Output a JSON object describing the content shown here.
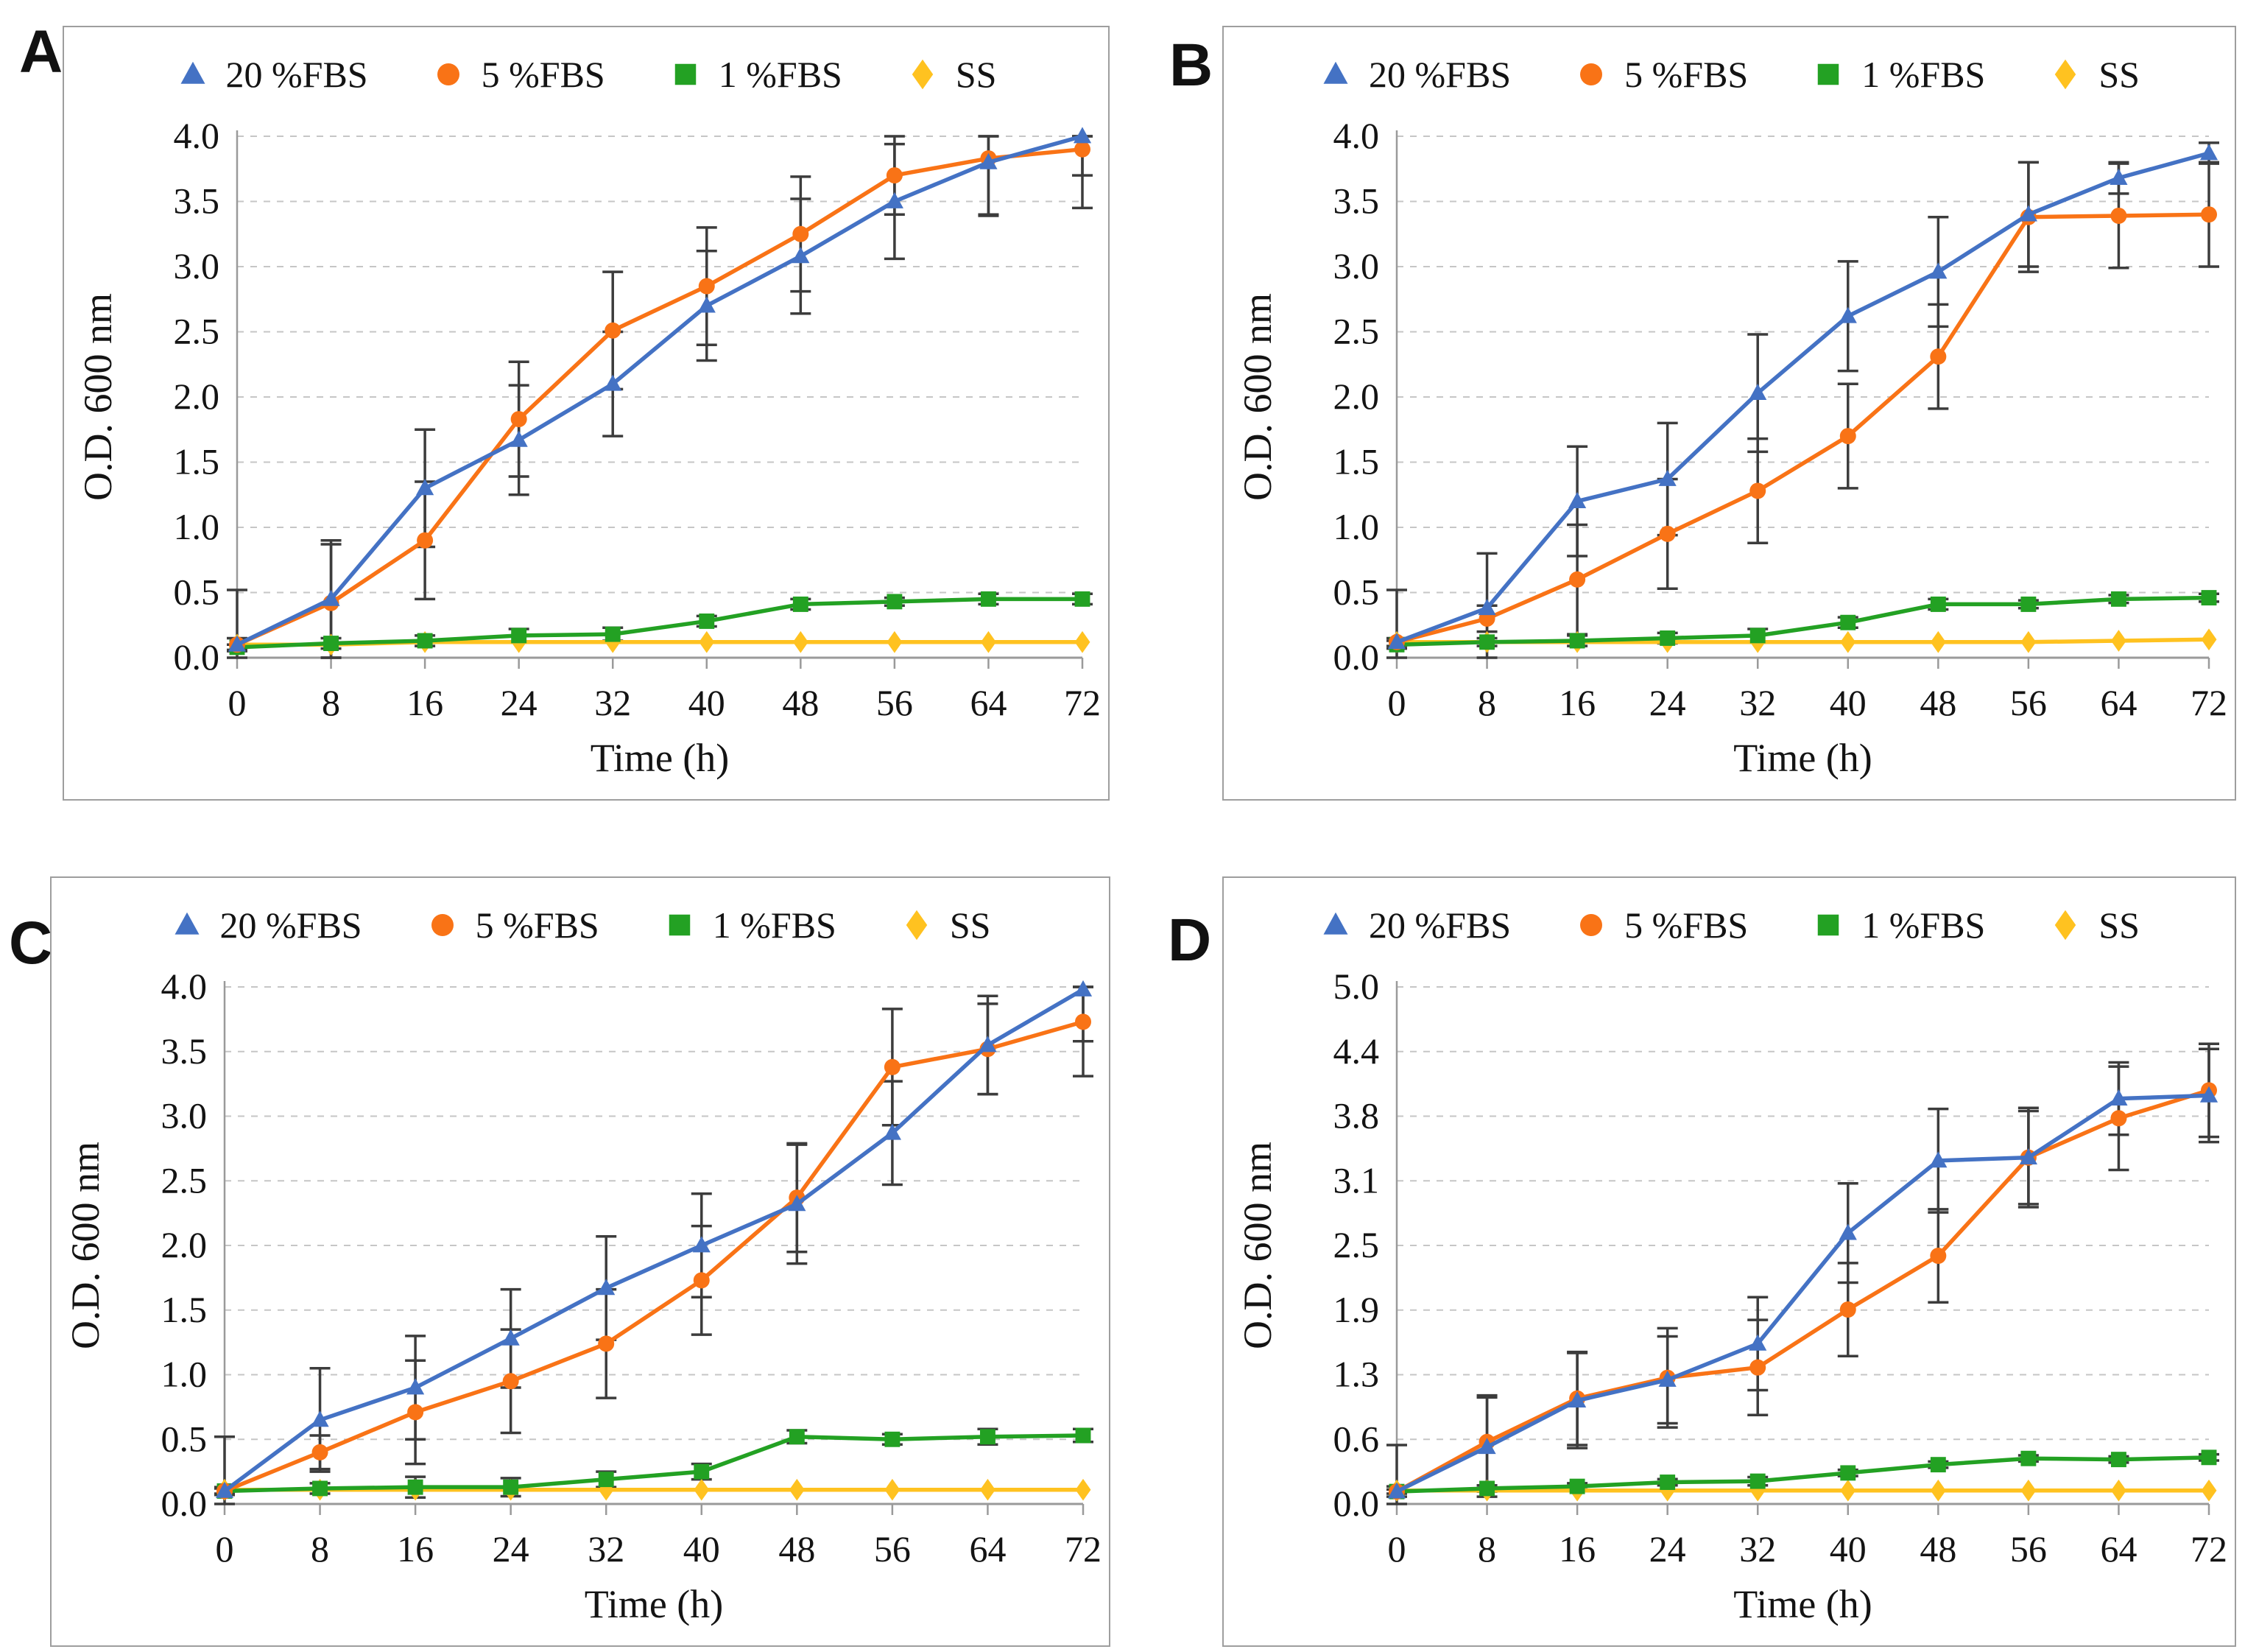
{
  "figure": {
    "error_bar_color": "#3c3c3c",
    "axis_color": "#9a9a9a",
    "grid_color": "#c6c6c6",
    "border_color": "#9e9e9e",
    "background": "#ffffff"
  },
  "chart_data": [
    {
      "type": "line",
      "label": "A",
      "title": "",
      "xlabel": "Time (h)",
      "ylabel": "O.D. 600 nm",
      "x": [
        0,
        8,
        16,
        24,
        32,
        40,
        48,
        56,
        64,
        72
      ],
      "xtick_labels": [
        "0",
        "8",
        "16",
        "24",
        "32",
        "40",
        "48",
        "56",
        "64",
        "72"
      ],
      "ylim": [
        0,
        4.0
      ],
      "ytick_values": [
        0,
        0.5,
        1.0,
        1.5,
        2.0,
        2.5,
        3.0,
        3.5,
        4.0
      ],
      "ytick_labels": [
        "0.0",
        "0.5",
        "1.0",
        "1.5",
        "2.0",
        "2.5",
        "3.0",
        "3.5",
        "4.0"
      ],
      "grid": true,
      "legend_position": "top",
      "series": [
        {
          "name": "20 %FBS",
          "color": "#4472C4",
          "marker": "triangle",
          "values": [
            0.1,
            0.45,
            1.3,
            1.67,
            2.1,
            2.7,
            3.08,
            3.5,
            3.8,
            4.0
          ],
          "err": [
            0.42,
            0.45,
            0.45,
            0.42,
            0.4,
            0.42,
            0.44,
            0.44,
            0.4,
            0.3
          ]
        },
        {
          "name": "5 %FBS",
          "color": "#F97316",
          "marker": "circle",
          "values": [
            0.1,
            0.42,
            0.9,
            1.83,
            2.51,
            2.85,
            3.25,
            3.7,
            3.83,
            3.9
          ],
          "err": [
            0.05,
            0.45,
            0.45,
            0.44,
            0.45,
            0.45,
            0.44,
            0.3,
            0.44,
            0.45
          ]
        },
        {
          "name": "1 %FBS",
          "color": "#23A123",
          "marker": "square",
          "values": [
            0.08,
            0.11,
            0.13,
            0.17,
            0.18,
            0.28,
            0.41,
            0.43,
            0.45,
            0.45
          ],
          "err": [
            0.02,
            0.04,
            0.04,
            0.05,
            0.05,
            0.04,
            0.04,
            0.03,
            0.04,
            0.04
          ]
        },
        {
          "name": "SS",
          "color": "#FFC220",
          "marker": "diamond",
          "values": [
            0.1,
            0.1,
            0.12,
            0.12,
            0.12,
            0.12,
            0.12,
            0.12,
            0.12,
            0.12
          ],
          "err": [
            0.01,
            0.01,
            0.01,
            0.01,
            0.01,
            0.01,
            0.01,
            0.01,
            0.01,
            0.01
          ]
        }
      ]
    },
    {
      "type": "line",
      "label": "B",
      "title": "",
      "xlabel": "Time (h)",
      "ylabel": "O.D. 600 nm",
      "x": [
        0,
        8,
        16,
        24,
        32,
        40,
        48,
        56,
        64,
        72
      ],
      "xtick_labels": [
        "0",
        "8",
        "16",
        "24",
        "32",
        "40",
        "48",
        "56",
        "64",
        "72"
      ],
      "ylim": [
        0,
        4.0
      ],
      "ytick_values": [
        0,
        0.5,
        1.0,
        1.5,
        2.0,
        2.5,
        3.0,
        3.5,
        4.0
      ],
      "ytick_labels": [
        "0.0",
        "0.5",
        "1.0",
        "1.5",
        "2.0",
        "2.5",
        "3.0",
        "3.5",
        "4.0"
      ],
      "grid": true,
      "legend_position": "top",
      "series": [
        {
          "name": "20 %FBS",
          "color": "#4472C4",
          "marker": "triangle",
          "values": [
            0.12,
            0.38,
            1.2,
            1.37,
            2.03,
            2.62,
            2.96,
            3.4,
            3.68,
            3.87
          ],
          "err": [
            0.4,
            0.42,
            0.42,
            0.43,
            0.45,
            0.42,
            0.42,
            0.4,
            0.12,
            0.08
          ]
        },
        {
          "name": "5 %FBS",
          "color": "#F97316",
          "marker": "circle",
          "values": [
            0.12,
            0.3,
            0.6,
            0.95,
            1.28,
            1.7,
            2.31,
            3.38,
            3.39,
            3.4
          ],
          "err": [
            0.03,
            0.1,
            0.42,
            0.42,
            0.4,
            0.4,
            0.4,
            0.42,
            0.4,
            0.4
          ]
        },
        {
          "name": "1 %FBS",
          "color": "#23A123",
          "marker": "square",
          "values": [
            0.1,
            0.12,
            0.13,
            0.15,
            0.17,
            0.27,
            0.41,
            0.41,
            0.45,
            0.46
          ],
          "err": [
            0.03,
            0.03,
            0.04,
            0.04,
            0.05,
            0.04,
            0.04,
            0.03,
            0.03,
            0.03
          ]
        },
        {
          "name": "SS",
          "color": "#FFC220",
          "marker": "diamond",
          "values": [
            0.12,
            0.12,
            0.12,
            0.12,
            0.12,
            0.12,
            0.12,
            0.12,
            0.13,
            0.14
          ],
          "err": [
            0.01,
            0.01,
            0.01,
            0.01,
            0.01,
            0.01,
            0.01,
            0.01,
            0.01,
            0.01
          ]
        }
      ]
    },
    {
      "type": "line",
      "label": "C",
      "title": "",
      "xlabel": "Time (h)",
      "ylabel": "O.D. 600 nm",
      "x": [
        0,
        8,
        16,
        24,
        32,
        40,
        48,
        56,
        64,
        72
      ],
      "xtick_labels": [
        "0",
        "8",
        "16",
        "24",
        "32",
        "40",
        "48",
        "56",
        "64",
        "72"
      ],
      "ylim": [
        0,
        4.0
      ],
      "ytick_values": [
        0,
        0.5,
        1.0,
        1.5,
        2.0,
        2.5,
        3.0,
        3.5,
        4.0
      ],
      "ytick_labels": [
        "0.0",
        "0.5",
        "1.0",
        "1.5",
        "2.0",
        "2.5",
        "3.0",
        "3.5",
        "4.0"
      ],
      "grid": true,
      "legend_position": "top",
      "series": [
        {
          "name": "20 %FBS",
          "color": "#4472C4",
          "marker": "triangle",
          "values": [
            0.1,
            0.65,
            0.9,
            1.28,
            1.67,
            2.0,
            2.32,
            2.87,
            3.55,
            3.98
          ],
          "err": [
            0.42,
            0.4,
            0.4,
            0.38,
            0.4,
            0.4,
            0.46,
            0.4,
            0.38,
            0.4
          ]
        },
        {
          "name": "5 %FBS",
          "color": "#F97316",
          "marker": "circle",
          "values": [
            0.1,
            0.4,
            0.71,
            0.95,
            1.24,
            1.73,
            2.37,
            3.38,
            3.52,
            3.73
          ],
          "err": [
            0.03,
            0.13,
            0.4,
            0.4,
            0.42,
            0.42,
            0.42,
            0.45,
            0.35,
            0.42
          ]
        },
        {
          "name": "1 %FBS",
          "color": "#23A123",
          "marker": "square",
          "values": [
            0.1,
            0.12,
            0.13,
            0.13,
            0.19,
            0.25,
            0.52,
            0.5,
            0.52,
            0.53
          ],
          "err": [
            0.02,
            0.04,
            0.08,
            0.07,
            0.06,
            0.06,
            0.05,
            0.04,
            0.06,
            0.05
          ]
        },
        {
          "name": "SS",
          "color": "#FFC220",
          "marker": "diamond",
          "values": [
            0.11,
            0.11,
            0.11,
            0.11,
            0.11,
            0.11,
            0.11,
            0.11,
            0.11,
            0.11
          ],
          "err": [
            0.01,
            0.01,
            0.01,
            0.01,
            0.01,
            0.01,
            0.01,
            0.01,
            0.01,
            0.01
          ]
        }
      ]
    },
    {
      "type": "line",
      "label": "D",
      "title": "",
      "xlabel": "Time (h)",
      "ylabel": "O.D. 600 nm",
      "x": [
        0,
        8,
        16,
        24,
        32,
        40,
        48,
        56,
        64,
        72
      ],
      "xtick_labels": [
        "0",
        "8",
        "16",
        "24",
        "32",
        "40",
        "48",
        "56",
        "64",
        "72"
      ],
      "ylim": [
        0,
        5.0
      ],
      "ytick_values": [
        0,
        0.625,
        1.25,
        1.875,
        2.5,
        3.125,
        3.75,
        4.375,
        5.0
      ],
      "ytick_labels": [
        "0.0",
        "0.6",
        "1.3",
        "1.9",
        "2.5",
        "3.1",
        "3.8",
        "4.4",
        "5.0"
      ],
      "grid": true,
      "legend_position": "top",
      "series": [
        {
          "name": "20 %FBS",
          "color": "#4472C4",
          "marker": "triangle",
          "values": [
            0.12,
            0.55,
            1.0,
            1.2,
            1.55,
            2.62,
            3.32,
            3.35,
            3.92,
            3.95
          ],
          "err": [
            0.45,
            0.48,
            0.46,
            0.42,
            0.45,
            0.48,
            0.5,
            0.48,
            0.35,
            0.45
          ]
        },
        {
          "name": "5 %FBS",
          "color": "#F97316",
          "marker": "circle",
          "values": [
            0.12,
            0.6,
            1.02,
            1.22,
            1.32,
            1.88,
            2.4,
            3.35,
            3.73,
            4.0
          ],
          "err": [
            0.05,
            0.45,
            0.45,
            0.48,
            0.46,
            0.45,
            0.45,
            0.45,
            0.5,
            0.45
          ]
        },
        {
          "name": "1 %FBS",
          "color": "#23A123",
          "marker": "square",
          "values": [
            0.12,
            0.15,
            0.17,
            0.21,
            0.22,
            0.3,
            0.38,
            0.44,
            0.43,
            0.45
          ],
          "err": [
            0.02,
            0.03,
            0.03,
            0.03,
            0.04,
            0.03,
            0.03,
            0.03,
            0.03,
            0.03
          ]
        },
        {
          "name": "SS",
          "color": "#FFC220",
          "marker": "diamond",
          "values": [
            0.13,
            0.13,
            0.13,
            0.13,
            0.13,
            0.13,
            0.13,
            0.13,
            0.13,
            0.13
          ],
          "err": [
            0.01,
            0.01,
            0.01,
            0.01,
            0.01,
            0.01,
            0.01,
            0.01,
            0.01,
            0.01
          ]
        }
      ]
    }
  ]
}
